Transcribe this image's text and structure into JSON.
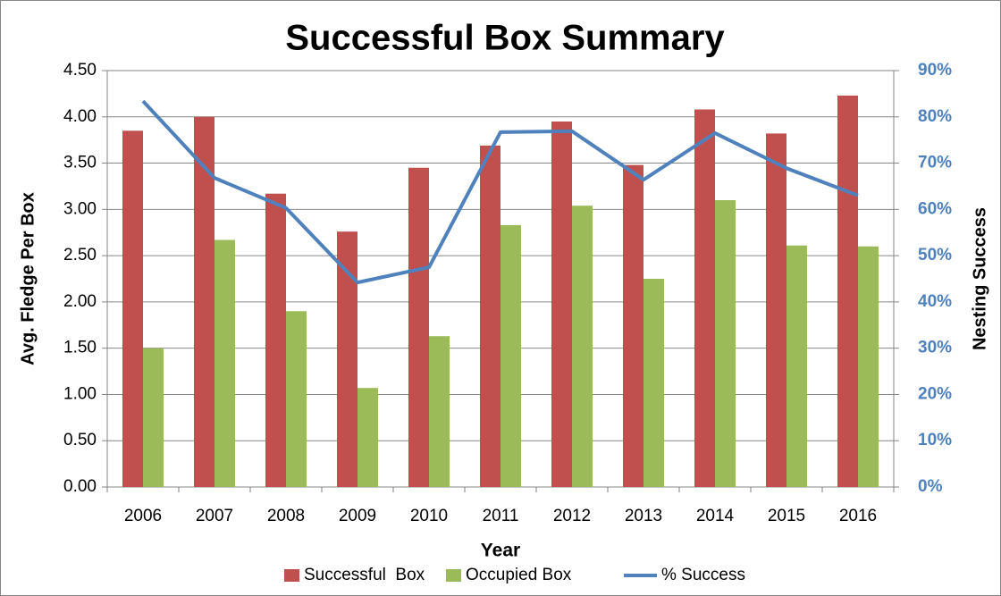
{
  "chart_data": {
    "type": "bar-line",
    "title": "Successful Box Summary",
    "x_label": "Year",
    "y_label": "Avg. Fledge Per Box",
    "y2_label": "Nesting Success",
    "categories": [
      "2006",
      "2007",
      "2008",
      "2009",
      "2010",
      "2011",
      "2012",
      "2013",
      "2014",
      "2015",
      "2016"
    ],
    "series": [
      {
        "name": "Successful  Box",
        "type": "bar",
        "color": "#c0504d",
        "values": [
          3.85,
          4.0,
          3.17,
          2.76,
          3.45,
          3.69,
          3.95,
          3.48,
          4.08,
          3.82,
          4.23
        ]
      },
      {
        "name": "Occupied Box",
        "type": "bar",
        "color": "#9bbb59",
        "values": [
          1.5,
          2.67,
          1.9,
          1.07,
          1.63,
          2.83,
          3.04,
          2.25,
          3.1,
          2.61,
          2.6
        ]
      },
      {
        "name": "% Success",
        "type": "line",
        "axis": "y2",
        "color": "#4f81bd",
        "values": [
          83.4,
          66.8,
          60.3,
          44.2,
          47.5,
          76.7,
          76.9,
          66.4,
          76.5,
          68.9,
          63.0
        ]
      }
    ],
    "ylim": [
      0,
      4.5
    ],
    "yticks": [
      {
        "value": 0,
        "label": "0.00"
      },
      {
        "value": 0.5,
        "label": "0.50"
      },
      {
        "value": 1,
        "label": "1.00"
      },
      {
        "value": 1.5,
        "label": "1.50"
      },
      {
        "value": 2,
        "label": "2.00"
      },
      {
        "value": 2.5,
        "label": "2.50"
      },
      {
        "value": 3,
        "label": "3.00"
      },
      {
        "value": 3.5,
        "label": "3.50"
      },
      {
        "value": 4,
        "label": "4.00"
      },
      {
        "value": 4.5,
        "label": "4.50"
      }
    ],
    "y2lim": [
      0,
      90
    ],
    "y2ticks": [
      {
        "value": 0,
        "label": "0%"
      },
      {
        "value": 10,
        "label": "10%"
      },
      {
        "value": 20,
        "label": "20%"
      },
      {
        "value": 30,
        "label": "30%"
      },
      {
        "value": 40,
        "label": "40%"
      },
      {
        "value": 50,
        "label": "50%"
      },
      {
        "value": 60,
        "label": "60%"
      },
      {
        "value": 70,
        "label": "70%"
      },
      {
        "value": 80,
        "label": "80%"
      },
      {
        "value": 90,
        "label": "90%"
      }
    ],
    "grid": true,
    "legend": "bottom"
  }
}
